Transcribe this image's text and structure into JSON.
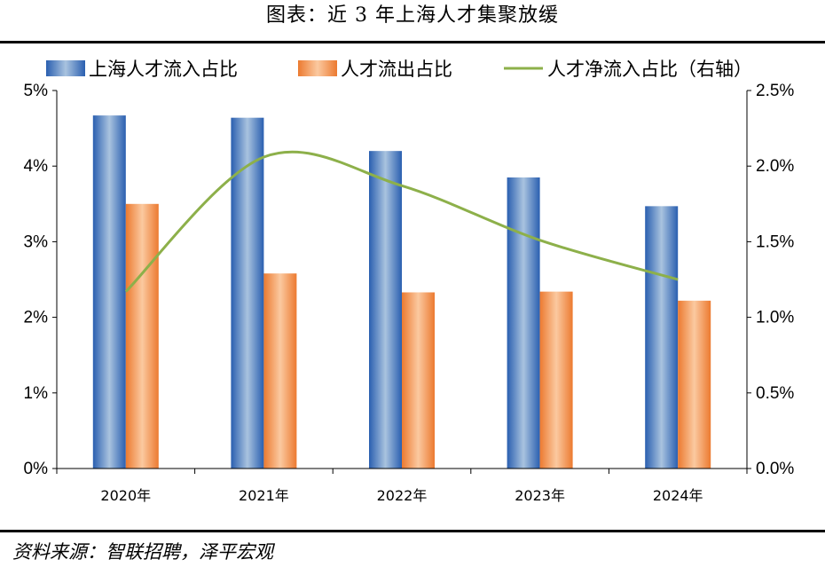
{
  "title": "图表：近 3 年上海人才集聚放缓",
  "source": "资料来源：智联招聘，泽平宏观",
  "colors": {
    "inflow": "#2e6fbf",
    "outflow": "#ee7f3a",
    "net": "#8db04a",
    "axis": "#000000"
  },
  "chart_data": {
    "type": "bar",
    "categories": [
      "2020年",
      "2021年",
      "2022年",
      "2023年",
      "2024年"
    ],
    "series": [
      {
        "name": "上海人才流入占比",
        "type": "bar",
        "axis": "left",
        "color": "#2e6fbf",
        "values": [
          4.67,
          4.64,
          4.2,
          3.85,
          3.47
        ]
      },
      {
        "name": "人才流出占比",
        "type": "bar",
        "axis": "left",
        "color": "#ee7f3a",
        "values": [
          3.5,
          2.58,
          2.33,
          2.34,
          2.22
        ]
      },
      {
        "name": "人才净流入占比（右轴）",
        "type": "line",
        "axis": "right",
        "color": "#8db04a",
        "values": [
          1.17,
          2.06,
          1.87,
          1.51,
          1.25
        ]
      }
    ],
    "y_left": {
      "min": 0,
      "max": 5,
      "step": 1,
      "tick_labels": [
        "0%",
        "1%",
        "2%",
        "3%",
        "4%",
        "5%"
      ]
    },
    "y_right": {
      "min": 0,
      "max": 2.5,
      "step": 0.5,
      "tick_labels": [
        "0.0%",
        "0.5%",
        "1.0%",
        "1.5%",
        "2.0%",
        "2.5%"
      ]
    },
    "grid": false,
    "legend": "top"
  }
}
